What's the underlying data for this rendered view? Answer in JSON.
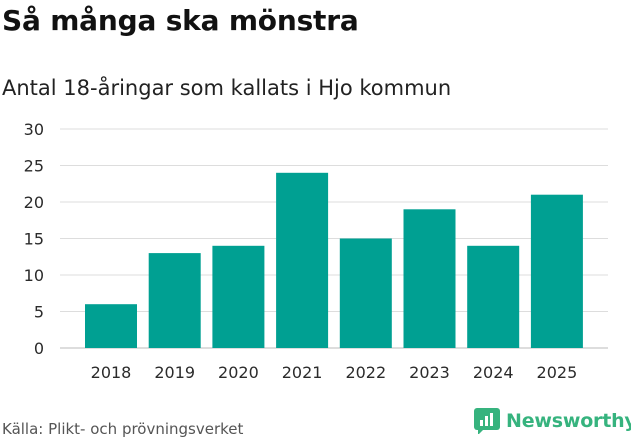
{
  "title": "Så många ska mönstra",
  "subtitle": "Antal 18-åringar som kallats i Hjo kommun",
  "source": "Källa: Plikt- och prövningsverket",
  "brand": "Newsworthy",
  "colors": {
    "bar": "#00a092",
    "grid": "#dddddd",
    "brand": "#36b37e"
  },
  "chart_data": {
    "type": "bar",
    "categories": [
      "2018",
      "2019",
      "2020",
      "2021",
      "2022",
      "2023",
      "2024",
      "2025"
    ],
    "values": [
      6,
      13,
      14,
      24,
      15,
      19,
      14,
      21
    ],
    "ylim": [
      0,
      30
    ],
    "yticks": [
      0,
      5,
      10,
      15,
      20,
      25,
      30
    ],
    "grid": true,
    "title": "Så många ska mönstra",
    "subtitle": "Antal 18-åringar som kallats i Hjo kommun"
  }
}
